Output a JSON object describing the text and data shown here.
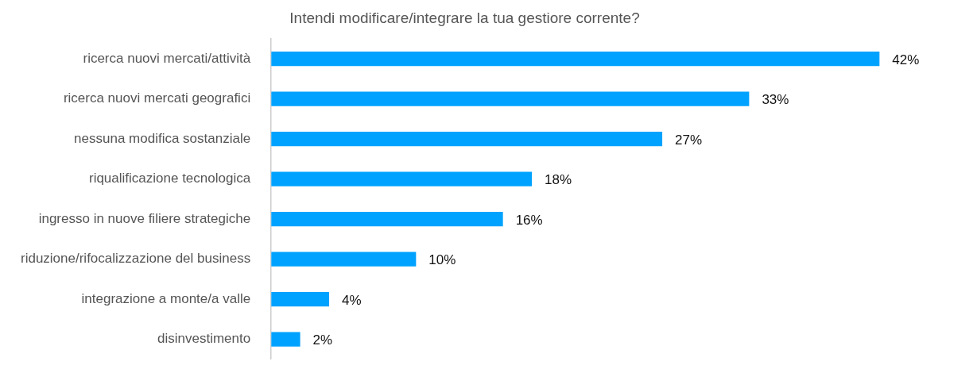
{
  "chart_data": {
    "type": "bar",
    "orientation": "horizontal",
    "title": "Intendi modificare/integrare la tua gestiore corrente?",
    "categories": [
      "ricerca nuovi mercati/attività",
      "ricerca nuovi mercati geografici",
      "nessuna modifica sostanziale",
      "riqualificazione tecnologica",
      "ingresso in nuove filiere strategiche",
      "riduzione/rifocalizzazione del business",
      "integrazione a monte/a valle",
      "disinvestimento"
    ],
    "values": [
      42,
      33,
      27,
      18,
      16,
      10,
      4,
      2
    ],
    "value_labels": [
      "42%",
      "33%",
      "27%",
      "18%",
      "16%",
      "10%",
      "4%",
      "2%"
    ],
    "color": "#00a2ff",
    "legend": false
  }
}
